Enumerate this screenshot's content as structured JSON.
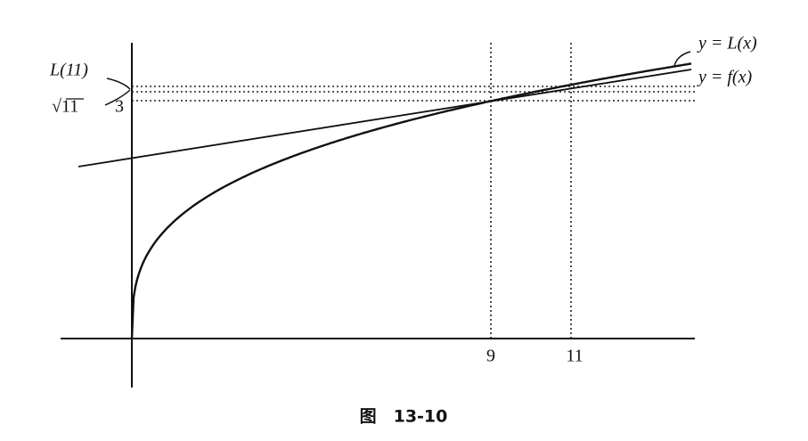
{
  "labels": {
    "l11": "L(11)",
    "sqrt11": "√11",
    "three": "3",
    "nine": "9",
    "eleven": "11",
    "line": "y = L(x)",
    "curve": "y = f(x)"
  },
  "caption": "图　13-10"
}
